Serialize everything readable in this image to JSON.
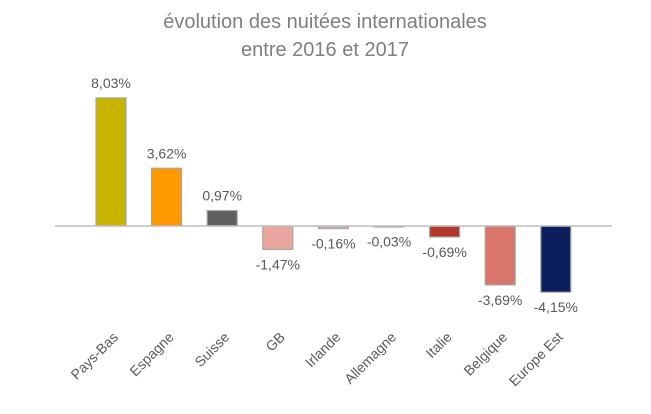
{
  "chart_data": {
    "type": "bar",
    "title": [
      "évolution des nuitées internationales",
      "entre 2016 et 2017"
    ],
    "categories": [
      "Pays-Bas",
      "Espagne",
      "Suisse",
      "GB",
      "Irlande",
      "Allemagne",
      "Italie",
      "Belgique",
      "Europe Est"
    ],
    "values": [
      8.03,
      3.62,
      0.97,
      -1.47,
      -0.16,
      -0.03,
      -0.69,
      -3.69,
      -4.15
    ],
    "value_labels": [
      "8,03%",
      "3,62%",
      "0,97%",
      "-1,47%",
      "-0,16%",
      "-0,03%",
      "-0,69%",
      "-3,69%",
      "-4,15%"
    ],
    "colors": [
      "#c9b400",
      "#ff9900",
      "#5f5f5f",
      "#eba79f",
      "#cfaaa3",
      "#bdbdbd",
      "#b23a2c",
      "#d9756b",
      "#0b1f5e"
    ]
  }
}
